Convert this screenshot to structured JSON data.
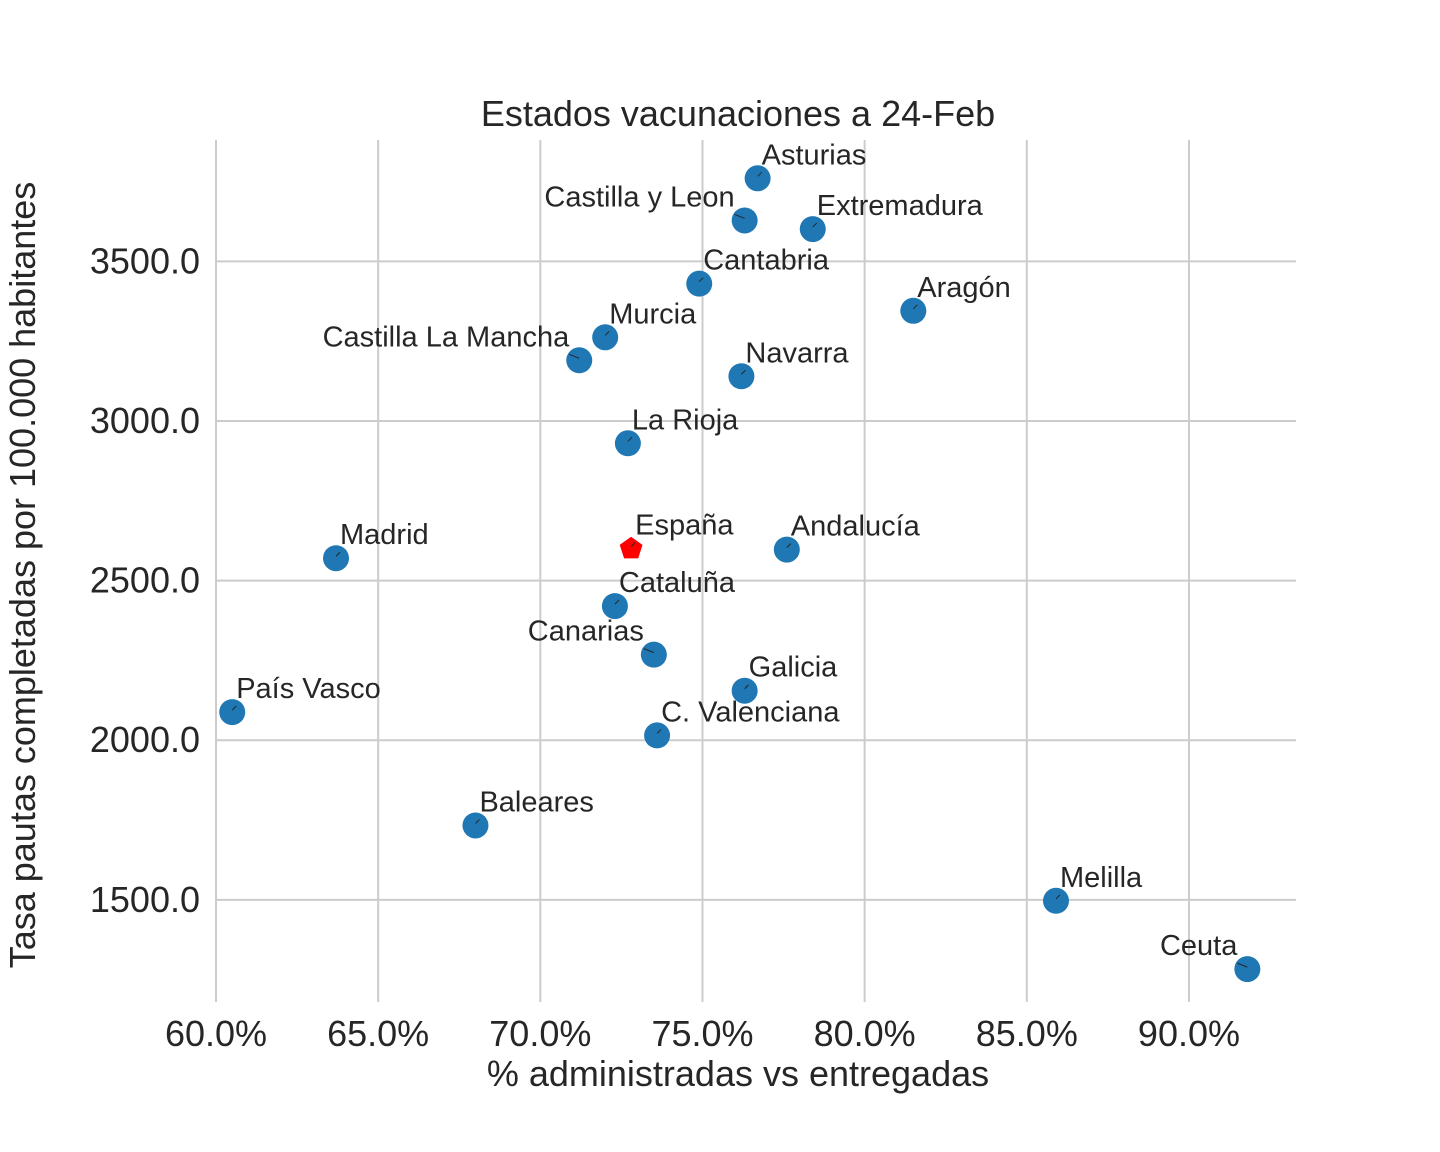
{
  "chart_data": {
    "type": "scatter",
    "title": "Estados vacunaciones a 24-Feb",
    "xlabel": "% administradas vs entregadas",
    "ylabel": "Tasa pautas completadas por 100.000 habitantes",
    "xlim": [
      0.6,
      0.933
    ],
    "ylim": [
      1180,
      3880
    ],
    "x_ticks": [
      0.6,
      0.65,
      0.7,
      0.75,
      0.8,
      0.85,
      0.9
    ],
    "x_tick_labels": [
      "60.0%",
      "65.0%",
      "70.0%",
      "75.0%",
      "80.0%",
      "85.0%",
      "90.0%"
    ],
    "y_ticks": [
      1500,
      2000,
      2500,
      3000,
      3500
    ],
    "y_tick_labels": [
      "1500.0",
      "2000.0",
      "2500.0",
      "3000.0",
      "3500.0"
    ],
    "grid": true,
    "colors": {
      "point": "#1f77b4",
      "highlight": "#ff0000"
    },
    "points": [
      {
        "name": "Asturias",
        "x": 0.767,
        "y": 3760,
        "label_side": "right"
      },
      {
        "name": "Castilla y Leon",
        "x": 0.763,
        "y": 3628,
        "label_side": "left"
      },
      {
        "name": "Extremadura",
        "x": 0.784,
        "y": 3601,
        "label_side": "right"
      },
      {
        "name": "Cantabria",
        "x": 0.749,
        "y": 3430,
        "label_side": "right"
      },
      {
        "name": "Aragón",
        "x": 0.815,
        "y": 3345,
        "label_side": "right"
      },
      {
        "name": "Murcia",
        "x": 0.72,
        "y": 3262,
        "label_side": "right"
      },
      {
        "name": "Castilla La Mancha",
        "x": 0.712,
        "y": 3190,
        "label_side": "left"
      },
      {
        "name": "Navarra",
        "x": 0.762,
        "y": 3140,
        "label_side": "right"
      },
      {
        "name": "La Rioja",
        "x": 0.727,
        "y": 2930,
        "label_side": "right"
      },
      {
        "name": "España",
        "x": 0.728,
        "y": 2600,
        "label_side": "right",
        "highlight": true
      },
      {
        "name": "Andalucía",
        "x": 0.776,
        "y": 2597,
        "label_side": "right"
      },
      {
        "name": "Madrid",
        "x": 0.637,
        "y": 2570,
        "label_side": "right"
      },
      {
        "name": "Cataluña",
        "x": 0.723,
        "y": 2420,
        "label_side": "right"
      },
      {
        "name": "Canarias",
        "x": 0.735,
        "y": 2268,
        "label_side": "left"
      },
      {
        "name": "Galicia",
        "x": 0.763,
        "y": 2155,
        "label_side": "right"
      },
      {
        "name": "País Vasco",
        "x": 0.605,
        "y": 2088,
        "label_side": "right"
      },
      {
        "name": "C. Valenciana",
        "x": 0.736,
        "y": 2015,
        "label_side": "right"
      },
      {
        "name": "Baleares",
        "x": 0.68,
        "y": 1733,
        "label_side": "right"
      },
      {
        "name": "Melilla",
        "x": 0.859,
        "y": 1497,
        "label_side": "right"
      },
      {
        "name": "Ceuta",
        "x": 0.918,
        "y": 1283,
        "label_side": "left"
      }
    ]
  }
}
